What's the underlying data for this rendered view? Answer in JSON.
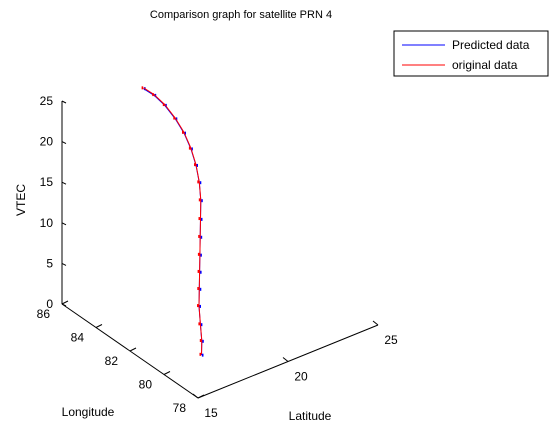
{
  "chart_data": {
    "type": "line",
    "projection": "3d",
    "title": "Comparison graph for satellite PRN 4",
    "xlabel": "Latitude",
    "ylabel": "Longitude",
    "zlabel": "VTEC",
    "xlim": [
      15,
      25
    ],
    "ylim": [
      78,
      86
    ],
    "zlim": [
      0,
      25
    ],
    "x_ticks": [
      "15",
      "20",
      "25"
    ],
    "y_ticks": [
      "78",
      "80",
      "82",
      "84",
      "86"
    ],
    "z_ticks": [
      "0",
      "5",
      "10",
      "15",
      "20",
      "25"
    ],
    "grid": false,
    "legend_position": "top-right",
    "series": [
      {
        "name": "Predicted data",
        "color": "#0000ff",
        "points": [
          [
            16.8,
            79.7,
            1.2
          ],
          [
            17.1,
            80.0,
            2.2
          ],
          [
            17.4,
            80.4,
            3.4
          ],
          [
            17.7,
            80.8,
            4.8
          ],
          [
            18.0,
            81.1,
            6.2
          ],
          [
            18.3,
            81.4,
            7.6
          ],
          [
            18.6,
            81.7,
            9.0
          ],
          [
            18.9,
            82.0,
            10.5
          ],
          [
            19.2,
            82.3,
            12.0
          ],
          [
            19.5,
            82.6,
            13.6
          ],
          [
            19.7,
            82.9,
            15.2
          ],
          [
            19.8,
            83.2,
            16.8
          ],
          [
            19.8,
            83.5,
            18.4
          ],
          [
            19.7,
            83.8,
            20.0
          ],
          [
            19.5,
            84.1,
            21.5
          ],
          [
            19.2,
            84.4,
            23.0
          ],
          [
            18.8,
            84.6,
            24.3
          ],
          [
            18.4,
            84.8,
            25.2
          ]
        ]
      },
      {
        "name": "original data",
        "color": "#ff0000",
        "points": [
          [
            16.8,
            79.7,
            1.3
          ],
          [
            17.1,
            80.0,
            2.3
          ],
          [
            17.4,
            80.4,
            3.5
          ],
          [
            17.7,
            80.8,
            4.9
          ],
          [
            18.0,
            81.1,
            6.3
          ],
          [
            18.3,
            81.4,
            7.7
          ],
          [
            18.6,
            81.7,
            9.1
          ],
          [
            18.9,
            82.0,
            10.6
          ],
          [
            19.2,
            82.3,
            12.1
          ],
          [
            19.5,
            82.6,
            13.7
          ],
          [
            19.7,
            82.9,
            15.3
          ],
          [
            19.8,
            83.2,
            16.9
          ],
          [
            19.8,
            83.5,
            18.5
          ],
          [
            19.7,
            83.8,
            20.1
          ],
          [
            19.5,
            84.1,
            21.6
          ],
          [
            19.2,
            84.4,
            23.1
          ],
          [
            18.8,
            84.6,
            24.4
          ],
          [
            18.4,
            84.8,
            25.3
          ]
        ]
      }
    ]
  }
}
